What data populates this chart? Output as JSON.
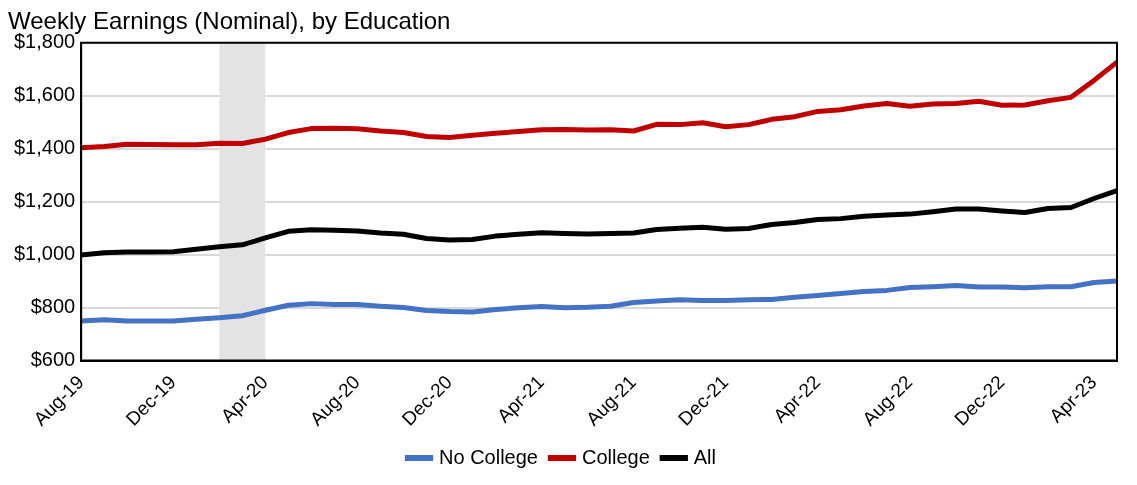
{
  "chart_data": {
    "type": "line",
    "title": "Weekly Earnings (Nominal), by Education",
    "x": [
      "2019-08",
      "2019-09",
      "2019-10",
      "2019-11",
      "2019-12",
      "2020-01",
      "2020-02",
      "2020-03",
      "2020-04",
      "2020-05",
      "2020-06",
      "2020-07",
      "2020-08",
      "2020-09",
      "2020-10",
      "2020-11",
      "2020-12",
      "2021-01",
      "2021-02",
      "2021-03",
      "2021-04",
      "2021-05",
      "2021-06",
      "2021-07",
      "2021-08",
      "2021-09",
      "2021-10",
      "2021-11",
      "2021-12",
      "2022-01",
      "2022-02",
      "2022-03",
      "2022-04",
      "2022-05",
      "2022-06",
      "2022-07",
      "2022-08",
      "2022-09",
      "2022-10",
      "2022-11",
      "2022-12",
      "2023-01",
      "2023-02",
      "2023-03",
      "2023-04",
      "2023-05"
    ],
    "series": [
      {
        "name": "No College",
        "color": "#4472c4",
        "values": [
          749,
          754,
          749,
          749,
          749,
          756,
          762,
          769,
          790,
          809,
          815,
          812,
          812,
          805,
          800,
          789,
          785,
          783,
          793,
          799,
          804,
          799,
          801,
          805,
          819,
          825,
          830,
          827,
          827,
          830,
          831,
          839,
          846,
          853,
          861,
          865,
          876,
          879,
          883,
          878,
          878,
          875,
          879,
          879,
          895,
          900
        ]
      },
      {
        "name": "College",
        "color": "#c00000",
        "values": [
          1404,
          1408,
          1417,
          1416,
          1415,
          1415,
          1421,
          1420,
          1436,
          1461,
          1476,
          1477,
          1475,
          1467,
          1461,
          1446,
          1442,
          1451,
          1458,
          1465,
          1472,
          1473,
          1471,
          1472,
          1467,
          1492,
          1491,
          1498,
          1483,
          1491,
          1511,
          1521,
          1541,
          1547,
          1561,
          1571,
          1560,
          1569,
          1571,
          1579,
          1564,
          1565,
          1581,
          1594,
          1658,
          1727
        ]
      },
      {
        "name": "All",
        "color": "#000000",
        "values": [
          999,
          1007,
          1010,
          1010,
          1011,
          1020,
          1030,
          1037,
          1063,
          1088,
          1094,
          1092,
          1089,
          1082,
          1077,
          1061,
          1055,
          1057,
          1070,
          1077,
          1083,
          1080,
          1078,
          1080,
          1082,
          1095,
          1100,
          1103,
          1096,
          1099,
          1114,
          1121,
          1133,
          1136,
          1145,
          1150,
          1153,
          1162,
          1172,
          1172,
          1165,
          1159,
          1174,
          1178,
          1212,
          1242
        ]
      }
    ],
    "xlim": [
      "2019-08",
      "2023-05"
    ],
    "xticks": [
      {
        "value": "2019-08",
        "label": "Aug-19"
      },
      {
        "value": "2019-12",
        "label": "Dec-19"
      },
      {
        "value": "2020-04",
        "label": "Apr-20"
      },
      {
        "value": "2020-08",
        "label": "Aug-20"
      },
      {
        "value": "2020-12",
        "label": "Dec-20"
      },
      {
        "value": "2021-04",
        "label": "Apr-21"
      },
      {
        "value": "2021-08",
        "label": "Aug-21"
      },
      {
        "value": "2021-12",
        "label": "Dec-21"
      },
      {
        "value": "2022-04",
        "label": "Apr-22"
      },
      {
        "value": "2022-08",
        "label": "Aug-22"
      },
      {
        "value": "2022-12",
        "label": "Dec-22"
      },
      {
        "value": "2023-04",
        "label": "Apr-23"
      }
    ],
    "ylim": [
      600,
      1800
    ],
    "yticks": [
      {
        "value": 600,
        "label": "$600"
      },
      {
        "value": 800,
        "label": "$800"
      },
      {
        "value": 1000,
        "label": "$1,000"
      },
      {
        "value": 1200,
        "label": "$1,200"
      },
      {
        "value": 1400,
        "label": "$1,400"
      },
      {
        "value": 1600,
        "label": "$1,600"
      },
      {
        "value": 1800,
        "label": "$1,800"
      }
    ],
    "bands": [
      {
        "axis": "x",
        "from": "2020-02",
        "to": "2020-04",
        "color": "#e3e3e3"
      }
    ],
    "grid": "y",
    "legend": "bottom",
    "marker": "none",
    "line_style": "solid"
  }
}
